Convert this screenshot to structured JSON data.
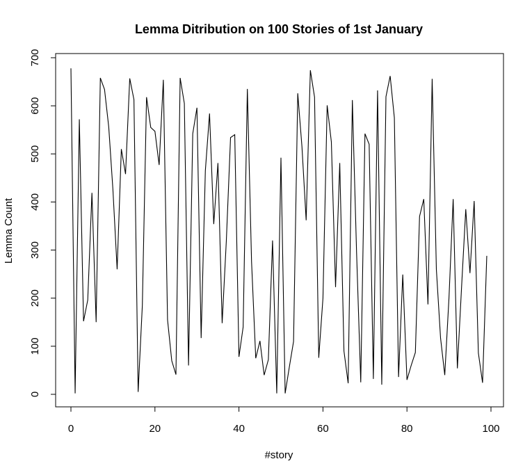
{
  "chart_data": {
    "type": "line",
    "title": "Lemma Ditribution on 100 Stories of 1st January",
    "xlabel": "#story",
    "ylabel": "Lemma Count",
    "xlim": [
      0,
      100
    ],
    "ylim": [
      0,
      700
    ],
    "x_ticks": [
      "0",
      "20",
      "40",
      "60",
      "80",
      "100"
    ],
    "y_ticks": [
      "0",
      "100",
      "200",
      "300",
      "400",
      "500",
      "600",
      "700"
    ],
    "grid": false,
    "line_color": "#000000",
    "series": [
      {
        "x": [
          0,
          1,
          2,
          3,
          4,
          5,
          6,
          7,
          8,
          9,
          10,
          11,
          12,
          13,
          14,
          15,
          16,
          17,
          18,
          19,
          20,
          21,
          22,
          23,
          24,
          25,
          26,
          27,
          28,
          29,
          30,
          31,
          32,
          33,
          34,
          35,
          36,
          37,
          38,
          39,
          40,
          41,
          42,
          43,
          44,
          45,
          46,
          47,
          48,
          49,
          50,
          51,
          52,
          53,
          54,
          55,
          56,
          57,
          58,
          59,
          60,
          61,
          62,
          63,
          64,
          65,
          66,
          67,
          68,
          69,
          70,
          71,
          72,
          73,
          74,
          75,
          76,
          77,
          78,
          79,
          80,
          81,
          82,
          83,
          84,
          85,
          86,
          87,
          88,
          89,
          90,
          91,
          92,
          93,
          94,
          95,
          96,
          97,
          98,
          99
        ],
        "values": [
          678,
          2,
          572,
          152,
          196,
          419,
          150,
          658,
          634,
          556,
          425,
          260,
          510,
          458,
          657,
          613,
          5,
          185,
          618,
          555,
          547,
          477,
          654,
          155,
          70,
          41,
          658,
          605,
          60,
          542,
          596,
          117,
          465,
          584,
          354,
          481,
          148,
          320,
          534,
          540,
          78,
          140,
          635,
          276,
          75,
          111,
          40,
          72,
          320,
          2,
          492,
          2,
          57,
          110,
          626,
          515,
          362,
          674,
          618,
          76,
          200,
          601,
          525,
          223,
          481,
          90,
          23,
          612,
          296,
          25,
          542,
          520,
          32,
          632,
          20,
          619,
          662,
          575,
          36,
          249,
          30,
          60,
          87,
          370,
          406,
          187,
          656,
          260,
          117,
          40,
          200,
          406,
          54,
          223,
          385,
          252,
          402,
          86,
          24,
          288
        ]
      }
    ]
  }
}
